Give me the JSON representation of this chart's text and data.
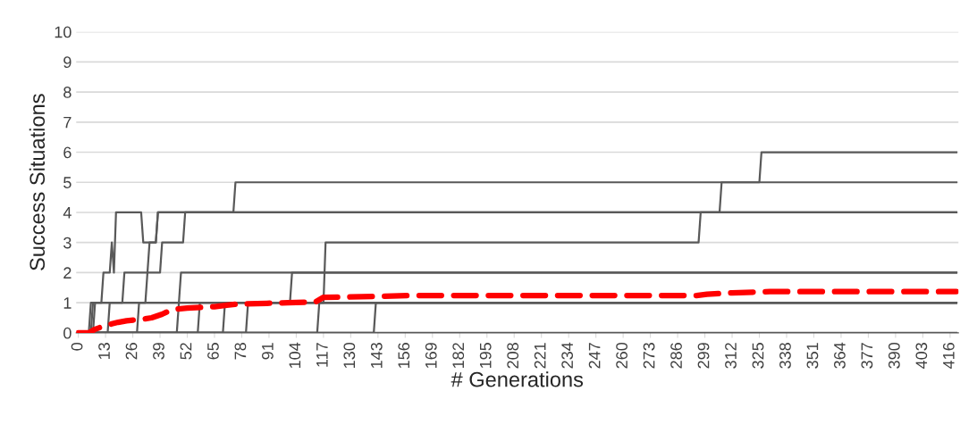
{
  "chart_data": {
    "type": "line",
    "xlabel": "# Generations",
    "ylabel": "Success Situations",
    "xlim": [
      -1,
      420
    ],
    "xticks": [
      0,
      13,
      26,
      39,
      52,
      65,
      78,
      91,
      104,
      117,
      130,
      143,
      156,
      169,
      182,
      195,
      208,
      221,
      234,
      247,
      260,
      273,
      286,
      299,
      312,
      325,
      338,
      351,
      364,
      377,
      390,
      403,
      416
    ],
    "ylim": [
      0,
      10
    ],
    "yticks": [
      0,
      1,
      2,
      3,
      4,
      5,
      6,
      7,
      8,
      9,
      10
    ],
    "grid": "y",
    "marker": "none",
    "series": [
      {
        "color": "#595959",
        "line_style": "solid",
        "x": [
          0,
          5,
          6,
          11,
          12,
          15,
          16,
          17,
          18,
          30,
          31,
          37,
          38,
          74,
          75,
          325,
          326,
          419
        ],
        "values": [
          0,
          0,
          1,
          1,
          2,
          2,
          3,
          2,
          4,
          4,
          3,
          3,
          4,
          4,
          5,
          5,
          6,
          6
        ]
      },
      {
        "color": "#595959",
        "line_style": "solid",
        "x": [
          0,
          6,
          7,
          21,
          22,
          33,
          34,
          37,
          38,
          306,
          307,
          419
        ],
        "values": [
          0,
          0,
          1,
          1,
          2,
          2,
          3,
          3,
          4,
          4,
          5,
          5
        ]
      },
      {
        "color": "#595959",
        "line_style": "solid",
        "x": [
          0,
          14,
          15,
          32,
          33,
          39,
          40,
          50,
          51,
          419
        ],
        "values": [
          0,
          0,
          1,
          1,
          2,
          2,
          3,
          3,
          4,
          4
        ]
      },
      {
        "color": "#595959",
        "line_style": "solid",
        "x": [
          0,
          28,
          29,
          48,
          49,
          419
        ],
        "values": [
          0,
          0,
          1,
          1,
          2,
          2
        ]
      },
      {
        "color": "#595959",
        "line_style": "solid",
        "x": [
          0,
          114,
          115,
          117,
          118,
          296,
          297,
          419
        ],
        "values": [
          0,
          0,
          1,
          1,
          3,
          3,
          4,
          4
        ]
      },
      {
        "color": "#595959",
        "line_style": "solid",
        "x": [
          0,
          7,
          8,
          101,
          102,
          419
        ],
        "values": [
          0,
          0,
          1,
          1,
          2,
          2
        ]
      },
      {
        "color": "#595959",
        "line_style": "solid",
        "x": [
          0,
          141,
          142,
          419
        ],
        "values": [
          0,
          0,
          1,
          1
        ]
      },
      {
        "color": "#595959",
        "line_style": "solid",
        "x": [
          0,
          47,
          48,
          419
        ],
        "values": [
          0,
          0,
          1,
          1
        ]
      },
      {
        "color": "#595959",
        "line_style": "solid",
        "x": [
          0,
          57,
          58,
          419
        ],
        "values": [
          0,
          0,
          1,
          1
        ]
      },
      {
        "color": "#595959",
        "line_style": "solid",
        "x": [
          0,
          69,
          70,
          419
        ],
        "values": [
          0,
          0,
          1,
          1
        ]
      },
      {
        "color": "#595959",
        "line_style": "solid",
        "x": [
          0,
          80,
          81,
          419
        ],
        "values": [
          0,
          0,
          1,
          1
        ]
      },
      {
        "color": "#595959",
        "line_style": "solid",
        "x": [
          0,
          419
        ],
        "values": [
          0,
          0
        ]
      },
      {
        "color": "#ff0000",
        "line_style": "dashed",
        "x": [
          0,
          5,
          8,
          12,
          16,
          19,
          23,
          30,
          35,
          40,
          45,
          52,
          65,
          75,
          90,
          100,
          113,
          117,
          135,
          160,
          295,
          300,
          312,
          330,
          419
        ],
        "values": [
          0,
          0,
          0.12,
          0.22,
          0.3,
          0.35,
          0.4,
          0.45,
          0.5,
          0.62,
          0.78,
          0.82,
          0.87,
          0.95,
          0.98,
          1.0,
          1.02,
          1.18,
          1.2,
          1.24,
          1.24,
          1.28,
          1.33,
          1.37,
          1.37
        ]
      }
    ]
  }
}
